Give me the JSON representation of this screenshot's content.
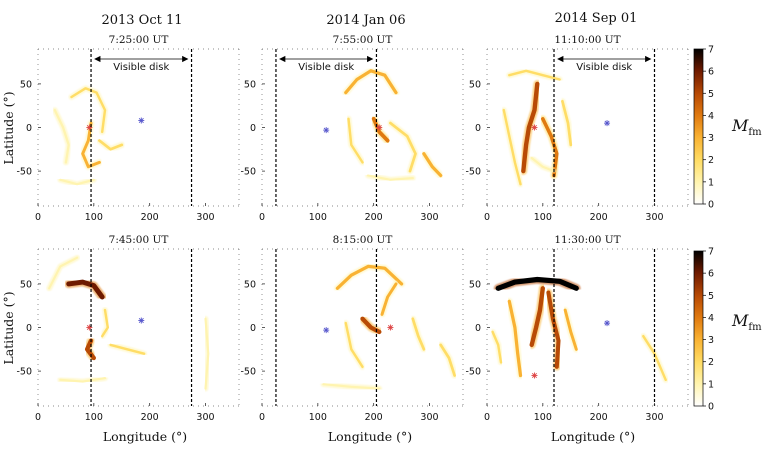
{
  "columns": [
    "2013 Oct 11",
    "2014 Jan 06",
    "2014 Sep 01"
  ],
  "axis": {
    "xlabel": "Longitude (°)",
    "ylabel": "Latitude (°)",
    "xlim": [
      0,
      360
    ],
    "ylim": [
      -90,
      90
    ],
    "xticks": [
      0,
      100,
      200,
      300
    ],
    "yticks": [
      50,
      0,
      -50
    ]
  },
  "visible_disk_label": "Visible disk",
  "colorbar": {
    "label_main": "M",
    "label_sub": "fm",
    "ticks": [
      0,
      1,
      2,
      3,
      4,
      5,
      6,
      7
    ],
    "colors": [
      "#ffffff",
      "#fff4b0",
      "#ffdd66",
      "#f9b233",
      "#e07a10",
      "#b84a05",
      "#6e1a00",
      "#000000"
    ]
  },
  "chart_data": [
    {
      "type": "heatmap",
      "name": "2013 Oct 11 top",
      "time": "7:25:00 UT",
      "disk_lon": [
        95,
        275
      ],
      "markers": [
        {
          "lon": 92,
          "lat": 0,
          "color": "#d44"
        },
        {
          "lon": 185,
          "lat": 8,
          "color": "#55c"
        }
      ],
      "features": [
        {
          "pts": [
            [
              60,
              35
            ],
            [
              85,
              45
            ],
            [
              105,
              40
            ],
            [
              120,
              20
            ],
            [
              115,
              -5
            ]
          ],
          "mag": 1.5
        },
        {
          "pts": [
            [
              95,
              5
            ],
            [
              90,
              -15
            ],
            [
              80,
              -30
            ],
            [
              90,
              -45
            ],
            [
              110,
              -40
            ]
          ],
          "mag": 2.5
        },
        {
          "pts": [
            [
              30,
              20
            ],
            [
              45,
              0
            ],
            [
              55,
              -20
            ],
            [
              50,
              -40
            ]
          ],
          "mag": 1.2
        },
        {
          "pts": [
            [
              110,
              -15
            ],
            [
              130,
              -25
            ],
            [
              150,
              -20
            ]
          ],
          "mag": 2.0
        },
        {
          "pts": [
            [
              40,
              -60
            ],
            [
              70,
              -65
            ],
            [
              100,
              -60
            ]
          ],
          "mag": 1.0
        }
      ]
    },
    {
      "type": "heatmap",
      "name": "2014 Jan 06 top",
      "time": "7:55:00 UT",
      "disk_lon": [
        25,
        205
      ],
      "markers": [
        {
          "lon": 115,
          "lat": -3,
          "color": "#55c"
        },
        {
          "lon": 210,
          "lat": 0,
          "color": "#d44"
        }
      ],
      "features": [
        {
          "pts": [
            [
              150,
              40
            ],
            [
              170,
              55
            ],
            [
              195,
              65
            ],
            [
              220,
              60
            ],
            [
              240,
              40
            ]
          ],
          "mag": 3.0
        },
        {
          "pts": [
            [
              200,
              10
            ],
            [
              210,
              -5
            ],
            [
              225,
              -15
            ]
          ],
          "mag": 4.0
        },
        {
          "pts": [
            [
              155,
              10
            ],
            [
              160,
              -20
            ],
            [
              180,
              -40
            ]
          ],
          "mag": 1.5
        },
        {
          "pts": [
            [
              230,
              5
            ],
            [
              260,
              -10
            ],
            [
              275,
              -30
            ],
            [
              265,
              -50
            ]
          ],
          "mag": 2.0
        },
        {
          "pts": [
            [
              290,
              -30
            ],
            [
              305,
              -45
            ],
            [
              320,
              -55
            ]
          ],
          "mag": 3.0
        },
        {
          "pts": [
            [
              190,
              -55
            ],
            [
              230,
              -60
            ],
            [
              270,
              -58
            ]
          ],
          "mag": 1.0
        }
      ]
    },
    {
      "type": "heatmap",
      "name": "2014 Sep 01 top",
      "time": "11:10:00 UT",
      "disk_lon": [
        120,
        300
      ],
      "markers": [
        {
          "lon": 215,
          "lat": 5,
          "color": "#55c"
        },
        {
          "lon": 85,
          "lat": 0,
          "color": "#d44"
        }
      ],
      "features": [
        {
          "pts": [
            [
              40,
              60
            ],
            [
              70,
              65
            ],
            [
              100,
              60
            ],
            [
              130,
              55
            ]
          ],
          "mag": 1.5
        },
        {
          "pts": [
            [
              90,
              50
            ],
            [
              85,
              20
            ],
            [
              75,
              0
            ],
            [
              70,
              -20
            ],
            [
              65,
              -50
            ]
          ],
          "mag": 5.0
        },
        {
          "pts": [
            [
              100,
              10
            ],
            [
              115,
              -10
            ],
            [
              125,
              -30
            ],
            [
              120,
              -55
            ]
          ],
          "mag": 3.5
        },
        {
          "pts": [
            [
              30,
              20
            ],
            [
              40,
              -10
            ],
            [
              50,
              -40
            ],
            [
              60,
              -65
            ]
          ],
          "mag": 1.5
        },
        {
          "pts": [
            [
              135,
              30
            ],
            [
              145,
              5
            ],
            [
              150,
              -20
            ]
          ],
          "mag": 2.0
        },
        {
          "pts": [
            [
              80,
              -35
            ],
            [
              100,
              -45
            ],
            [
              120,
              -50
            ]
          ],
          "mag": 1.0
        }
      ]
    },
    {
      "type": "heatmap",
      "name": "2013 Oct 11 bottom",
      "time": "7:45:00 UT",
      "disk_lon": [
        95,
        275
      ],
      "markers": [
        {
          "lon": 92,
          "lat": 0,
          "color": "#d44"
        },
        {
          "lon": 185,
          "lat": 8,
          "color": "#55c"
        }
      ],
      "features": [
        {
          "pts": [
            [
              55,
              50
            ],
            [
              80,
              52
            ],
            [
              100,
              48
            ],
            [
              115,
              35
            ]
          ],
          "mag": 6.0
        },
        {
          "pts": [
            [
              95,
              -15
            ],
            [
              88,
              -25
            ],
            [
              100,
              -35
            ]
          ],
          "mag": 5.0
        },
        {
          "pts": [
            [
              20,
              45
            ],
            [
              40,
              70
            ],
            [
              70,
              80
            ]
          ],
          "mag": 1.0
        },
        {
          "pts": [
            [
              120,
              20
            ],
            [
              125,
              0
            ],
            [
              115,
              -10
            ]
          ],
          "mag": 1.5
        },
        {
          "pts": [
            [
              130,
              -20
            ],
            [
              160,
              -25
            ],
            [
              190,
              -30
            ]
          ],
          "mag": 1.5
        },
        {
          "pts": [
            [
              40,
              -60
            ],
            [
              80,
              -62
            ],
            [
              120,
              -58
            ]
          ],
          "mag": 1.0
        },
        {
          "pts": [
            [
              300,
              10
            ],
            [
              305,
              -30
            ],
            [
              300,
              -70
            ]
          ],
          "mag": 1.0
        }
      ]
    },
    {
      "type": "heatmap",
      "name": "2014 Jan 06 bottom",
      "time": "8:15:00 UT",
      "disk_lon": [
        25,
        205
      ],
      "markers": [
        {
          "lon": 115,
          "lat": -3,
          "color": "#55c"
        },
        {
          "lon": 230,
          "lat": 0,
          "color": "#d44"
        }
      ],
      "features": [
        {
          "pts": [
            [
              135,
              45
            ],
            [
              160,
              60
            ],
            [
              190,
              70
            ],
            [
              220,
              68
            ],
            [
              250,
              50
            ]
          ],
          "mag": 3.0
        },
        {
          "pts": [
            [
              180,
              10
            ],
            [
              195,
              0
            ],
            [
              210,
              -5
            ]
          ],
          "mag": 5.0
        },
        {
          "pts": [
            [
              215,
              15
            ],
            [
              225,
              35
            ],
            [
              240,
              50
            ]
          ],
          "mag": 2.5
        },
        {
          "pts": [
            [
              150,
              5
            ],
            [
              160,
              -25
            ],
            [
              180,
              -45
            ]
          ],
          "mag": 1.5
        },
        {
          "pts": [
            [
              270,
              10
            ],
            [
              280,
              -10
            ],
            [
              290,
              -25
            ]
          ],
          "mag": 2.0
        },
        {
          "pts": [
            [
              320,
              -20
            ],
            [
              335,
              -35
            ],
            [
              345,
              -55
            ]
          ],
          "mag": 2.0
        },
        {
          "pts": [
            [
              110,
              -65
            ],
            [
              160,
              -68
            ],
            [
              210,
              -70
            ]
          ],
          "mag": 1.0
        }
      ]
    },
    {
      "type": "heatmap",
      "name": "2014 Sep 01 bottom",
      "time": "11:30:00 UT",
      "disk_lon": [
        120,
        300
      ],
      "markers": [
        {
          "lon": 215,
          "lat": 5,
          "color": "#55c"
        },
        {
          "lon": 85,
          "lat": -55,
          "color": "#d44"
        }
      ],
      "features": [
        {
          "pts": [
            [
              20,
              45
            ],
            [
              50,
              52
            ],
            [
              90,
              55
            ],
            [
              130,
              53
            ],
            [
              160,
              45
            ]
          ],
          "mag": 6.5
        },
        {
          "pts": [
            [
              100,
              45
            ],
            [
              95,
              20
            ],
            [
              88,
              0
            ],
            [
              80,
              -20
            ]
          ],
          "mag": 5.0
        },
        {
          "pts": [
            [
              110,
              40
            ],
            [
              118,
              10
            ],
            [
              128,
              -15
            ],
            [
              125,
              -45
            ]
          ],
          "mag": 4.5
        },
        {
          "pts": [
            [
              40,
              30
            ],
            [
              50,
              0
            ],
            [
              55,
              -30
            ],
            [
              60,
              -55
            ]
          ],
          "mag": 3.0
        },
        {
          "pts": [
            [
              140,
              20
            ],
            [
              150,
              -5
            ],
            [
              160,
              -25
            ]
          ],
          "mag": 2.5
        },
        {
          "pts": [
            [
              10,
              -5
            ],
            [
              20,
              -20
            ],
            [
              25,
              -40
            ]
          ],
          "mag": 1.5
        },
        {
          "pts": [
            [
              280,
              -10
            ],
            [
              300,
              -30
            ],
            [
              320,
              -60
            ]
          ],
          "mag": 1.5
        }
      ]
    }
  ]
}
